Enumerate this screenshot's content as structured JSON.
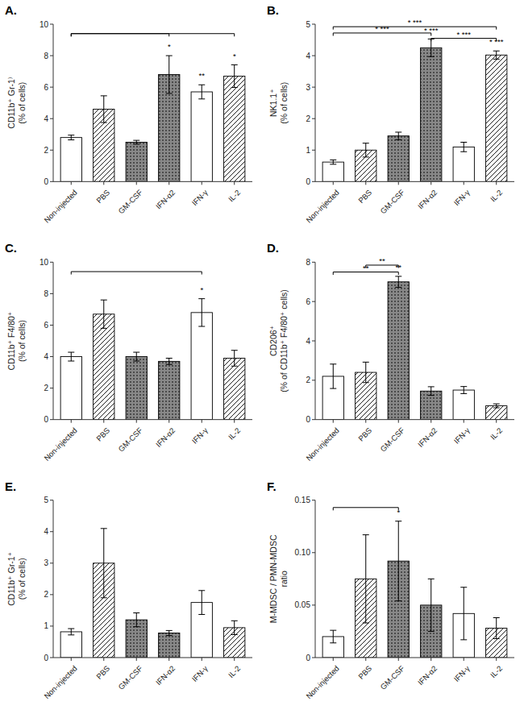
{
  "chart_data": [
    {
      "type": "bar",
      "title": "A.",
      "categories": [
        "Non-injected",
        "PBS",
        "GM-CSF",
        "IFN-α2",
        "IFN-γ",
        "IL-2"
      ],
      "values": [
        2.8,
        4.6,
        2.5,
        6.8,
        5.7,
        6.7
      ],
      "errors": [
        0.15,
        0.85,
        0.12,
        1.2,
        0.45,
        0.72
      ],
      "colors": [
        "white",
        "white",
        "#888888",
        "#888888",
        "white",
        "white"
      ],
      "ylabel": "CD11b⁺ Gr-1⁾\n(% of cells)",
      "ylim": [
        0,
        10
      ],
      "yticks": [
        0,
        2,
        4,
        6,
        8,
        10
      ],
      "grid": false,
      "annotations": [
        {
          "category": "IFN-α2",
          "text": "*"
        },
        {
          "category": "IFN-γ",
          "text": "**"
        },
        {
          "category": "IL-2",
          "text": "*"
        }
      ],
      "brackets": [
        {
          "from": "Non-injected",
          "to": "IFN-α2",
          "y": 9.4
        },
        {
          "from": "Non-injected",
          "to": "IL-2",
          "y": 9.4
        }
      ]
    },
    {
      "type": "bar",
      "title": "B.",
      "categories": [
        "Non-injected",
        "PBS",
        "GM-CSF",
        "IFN-α2",
        "IFN-γ",
        "IL-2"
      ],
      "values": [
        0.62,
        1.0,
        1.45,
        4.25,
        1.1,
        4.02
      ],
      "errors": [
        0.07,
        0.22,
        0.12,
        0.28,
        0.15,
        0.13
      ],
      "colors": [
        "white",
        "white",
        "#888888",
        "#888888",
        "white",
        "white"
      ],
      "ylabel": "NK1.1⁺\n(% of cells)",
      "ylim": [
        0,
        5
      ],
      "yticks": [
        0,
        1,
        2,
        3,
        4,
        5
      ],
      "grid": false,
      "annotations": [
        {
          "category": "IFN-α2",
          "text": "* ***"
        },
        {
          "category": "IL-2",
          "text": "* ***"
        }
      ],
      "brackets": [
        {
          "from": "Non-injected",
          "to": "IFN-α2",
          "y": 4.72,
          "label": "* ***"
        },
        {
          "from": "Non-injected",
          "to": "IL-2",
          "y": 4.92,
          "label": "* ***"
        },
        {
          "from": "IFN-α2",
          "to": "IL-2",
          "y": 4.55,
          "label": "* ***"
        }
      ]
    },
    {
      "type": "bar",
      "title": "C.",
      "categories": [
        "Non-injected",
        "PBS",
        "GM-CSF",
        "IFN-α2",
        "IFN-γ",
        "IL-2"
      ],
      "values": [
        4.0,
        6.7,
        4.0,
        3.7,
        6.8,
        3.9
      ],
      "errors": [
        0.28,
        0.9,
        0.28,
        0.2,
        0.88,
        0.5
      ],
      "colors": [
        "white",
        "white",
        "#888888",
        "#888888",
        "white",
        "white"
      ],
      "ylabel": "CD11b⁺ F4/80⁺\n(% of cells)",
      "ylim": [
        0,
        10
      ],
      "yticks": [
        0,
        2,
        4,
        6,
        8,
        10
      ],
      "grid": false,
      "annotations": [
        {
          "category": "IFN-γ",
          "text": "*"
        }
      ],
      "brackets": [
        {
          "from": "Non-injected",
          "to": "IFN-γ",
          "y": 9.4
        }
      ]
    },
    {
      "type": "bar",
      "title": "D.",
      "categories": [
        "Non-injected",
        "PBS",
        "GM-CSF",
        "IFN-α2",
        "IFN-γ",
        "IL-2"
      ],
      "values": [
        2.2,
        2.4,
        7.0,
        1.45,
        1.5,
        0.7
      ],
      "errors": [
        0.62,
        0.52,
        0.28,
        0.22,
        0.18,
        0.1
      ],
      "colors": [
        "white",
        "white",
        "#888888",
        "#888888",
        "white",
        "white"
      ],
      "ylabel": "CD206⁺\n(% of CD11b⁺ F4/80⁺ cells)",
      "ylim": [
        0,
        8
      ],
      "yticks": [
        0,
        2,
        4,
        6,
        8
      ],
      "grid": false,
      "annotations": [
        {
          "category": "GM-CSF",
          "text": "**"
        }
      ],
      "brackets": [
        {
          "from": "Non-injected",
          "to": "GM-CSF",
          "y": 7.5,
          "label": "**"
        },
        {
          "from": "PBS",
          "to": "GM-CSF",
          "y": 7.85,
          "label": "**"
        }
      ]
    },
    {
      "type": "bar",
      "title": "E.",
      "categories": [
        "Non-injected",
        "PBS",
        "GM-CSF",
        "IFN-α2",
        "IFN-γ",
        "IL-2"
      ],
      "values": [
        0.82,
        3.0,
        1.2,
        0.78,
        1.75,
        0.95
      ],
      "errors": [
        0.1,
        1.1,
        0.22,
        0.08,
        0.38,
        0.22
      ],
      "colors": [
        "white",
        "white",
        "#888888",
        "#888888",
        "white",
        "white"
      ],
      "ylabel": "CD11b⁺ Gr-1⁺\n(% of cells)",
      "ylim": [
        0,
        5
      ],
      "yticks": [
        0,
        1,
        2,
        3,
        4,
        5
      ],
      "grid": false,
      "annotations": [],
      "brackets": []
    },
    {
      "type": "bar",
      "title": "F.",
      "categories": [
        "Non-injected",
        "PBS",
        "GM-CSF",
        "IFN-α2",
        "IFN-γ",
        "IL-2"
      ],
      "values": [
        0.02,
        0.075,
        0.092,
        0.05,
        0.042,
        0.028
      ],
      "errors": [
        0.006,
        0.042,
        0.038,
        0.025,
        0.025,
        0.01
      ],
      "colors": [
        "white",
        "white",
        "#888888",
        "#888888",
        "white",
        "white"
      ],
      "ylabel": "M-MDSC / PMN-MDSC\nratio",
      "ylim": [
        0,
        0.15
      ],
      "yticks": [
        0,
        0.05,
        {
          "value": 0.1,
          "label": "0.10"
        },
        0.15
      ],
      "grid": false,
      "annotations": [
        {
          "category": "GM-CSF",
          "text": "*"
        }
      ],
      "brackets": [
        {
          "from": "Non-injected",
          "to": "GM-CSF",
          "y": 0.143
        }
      ]
    }
  ]
}
